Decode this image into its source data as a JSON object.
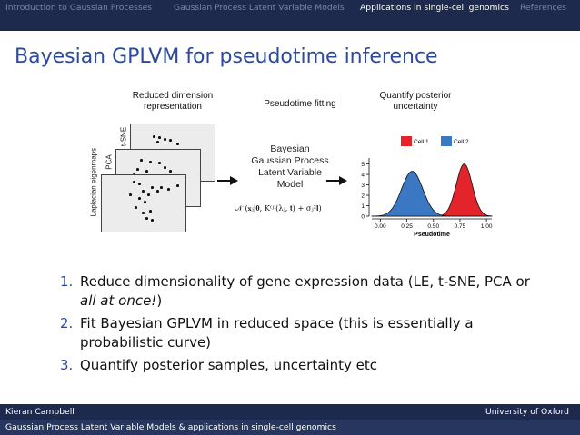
{
  "nav": {
    "items": [
      {
        "label": "Introduction to Gaussian Processes",
        "active": false
      },
      {
        "label": "Gaussian Process Latent Variable Models",
        "active": false
      },
      {
        "label": "Applications in single-cell genomics",
        "active": true
      },
      {
        "label": "References",
        "active": false
      }
    ]
  },
  "slide": {
    "title": "Bayesian GPLVM for pseudotime inference"
  },
  "diagram": {
    "headers": {
      "reduced": "Reduced dimension representation",
      "fitting": "Pseudotime fitting",
      "posterior": "Quantify posterior uncertainty"
    },
    "panel_labels": {
      "tsne": "t-SNE",
      "pca": "PCA",
      "le": "Laplacian eigenmaps"
    },
    "model_text": "Bayesian Gaussian Process Latent Variable Model",
    "formula": "𝒩 (𝐱ⱼ|𝟎, K⁽ʲ⁾(λⱼ, 𝐭) + σⱼ²𝐈)"
  },
  "chart_data": {
    "type": "area",
    "xlabel": "Pseudotime",
    "ylabel": "",
    "xlim": [
      -0.08,
      1.05
    ],
    "ylim": [
      0,
      5.4
    ],
    "x_ticks": [
      "0.00",
      "0.25",
      "0.50",
      "0.75",
      "1.00"
    ],
    "y_ticks": [
      "0",
      "1",
      "2",
      "3",
      "4",
      "5"
    ],
    "legend_placement": "top",
    "series": [
      {
        "name": "Cell 1",
        "color": "#e3242b",
        "mean": 0.79,
        "sd": 0.075,
        "peak": 5.0
      },
      {
        "name": "Cell 2",
        "color": "#3a78c4",
        "mean": 0.3,
        "sd": 0.1,
        "peak": 4.3
      }
    ]
  },
  "list": [
    {
      "num": "1.",
      "before": "Reduce dimensionality of gene expression data (LE, t-SNE, PCA or ",
      "emph": "all at once!",
      "after": ")"
    },
    {
      "num": "2.",
      "before": "Fit Bayesian GPLVM in reduced space (this is essentially a probabilistic curve)",
      "emph": "",
      "after": ""
    },
    {
      "num": "3.",
      "before": "Quantify posterior samples, uncertainty etc",
      "emph": "",
      "after": ""
    }
  ],
  "footer": {
    "author": "Kieran Campbell",
    "institution": "University of Oxford",
    "talk_title": "Gaussian Process Latent Variable Models & applications in single-cell genomics"
  }
}
